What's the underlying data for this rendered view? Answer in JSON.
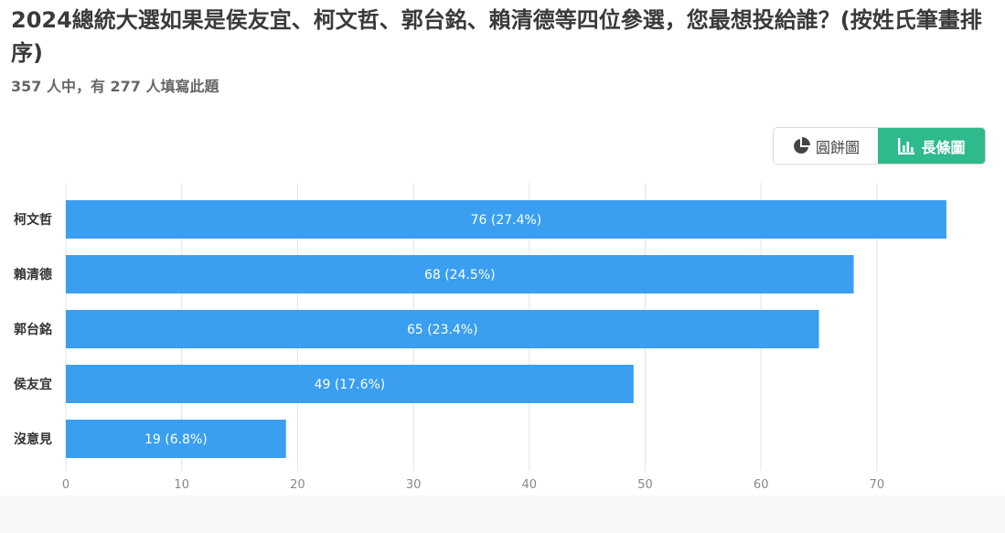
{
  "question": {
    "title": "2024總統大選如果是侯友宜、柯文哲、郭台銘、賴清德等四位參選，您最想投給誰？(按姓氏筆畫排序)",
    "subtitle": "357 人中，有 277 人填寫此題"
  },
  "toggle": {
    "pie_label": "圓餅圖",
    "bar_label": "長條圖",
    "active": "bar",
    "active_color": "#2fba8e",
    "pie_icon": "pie-chart-icon",
    "bar_icon": "bar-chart-icon"
  },
  "chart_data": {
    "type": "bar",
    "orientation": "horizontal",
    "categories": [
      "柯文哲",
      "賴清德",
      "郭台銘",
      "侯友宜",
      "沒意見"
    ],
    "values": [
      76,
      68,
      65,
      49,
      19
    ],
    "labels": [
      "76 (27.4%)",
      "68 (24.5%)",
      "65 (23.4%)",
      "49 (17.6%)",
      "19 (6.8%)"
    ],
    "xlim": [
      0,
      80
    ],
    "xticks": [
      0,
      10,
      20,
      30,
      40,
      50,
      60,
      70
    ],
    "grid": true,
    "bar_color": "#3a9ff0"
  }
}
